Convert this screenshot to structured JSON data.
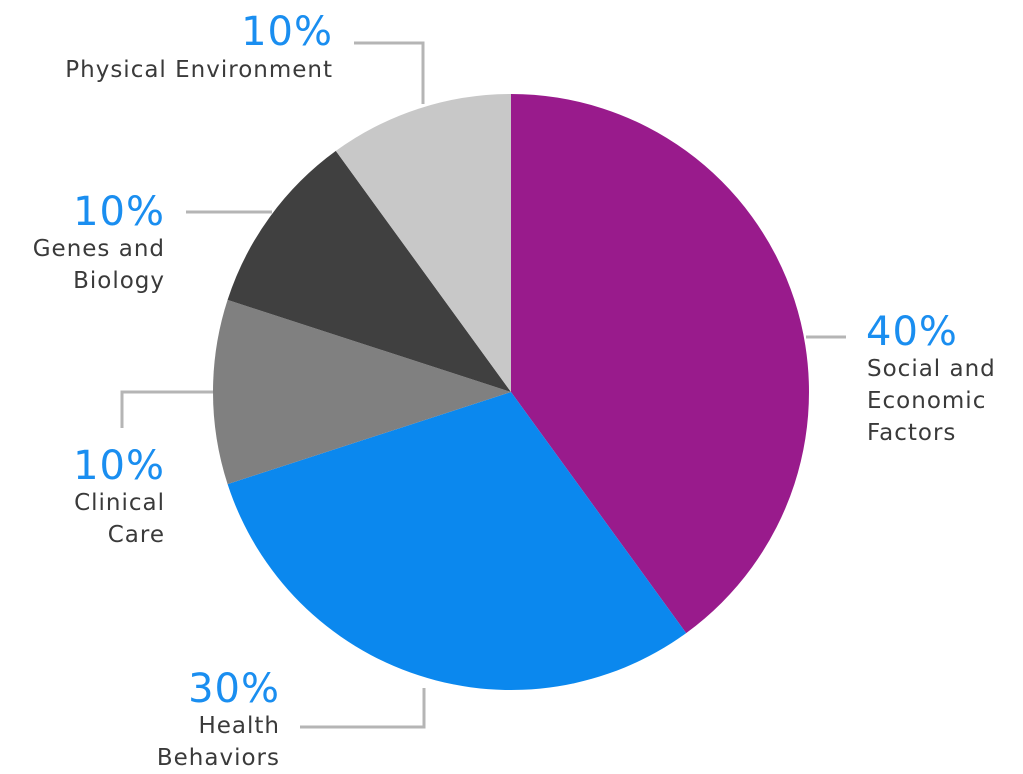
{
  "chart_data": {
    "type": "pie",
    "slices": [
      {
        "label_lines": [
          "Social and",
          "Economic",
          "Factors"
        ],
        "value": 40,
        "value_label": "40%",
        "color": "#991b8c"
      },
      {
        "label_lines": [
          "Health",
          "Behaviors"
        ],
        "value": 30,
        "value_label": "30%",
        "color": "#0b88ee"
      },
      {
        "label_lines": [
          "Clinical",
          "Care"
        ],
        "value": 10,
        "value_label": "10%",
        "color": "#808080"
      },
      {
        "label_lines": [
          "Genes and",
          "Biology"
        ],
        "value": 10,
        "value_label": "10%",
        "color": "#404040"
      },
      {
        "label_lines": [
          "Physical Environment"
        ],
        "value": 10,
        "value_label": "10%",
        "color": "#c8c8c8"
      }
    ],
    "start_angle": "12 o'clock",
    "direction": "clockwise",
    "leader_line_color": "#b5b5b5",
    "value_label_color": "#1a8ef0"
  }
}
